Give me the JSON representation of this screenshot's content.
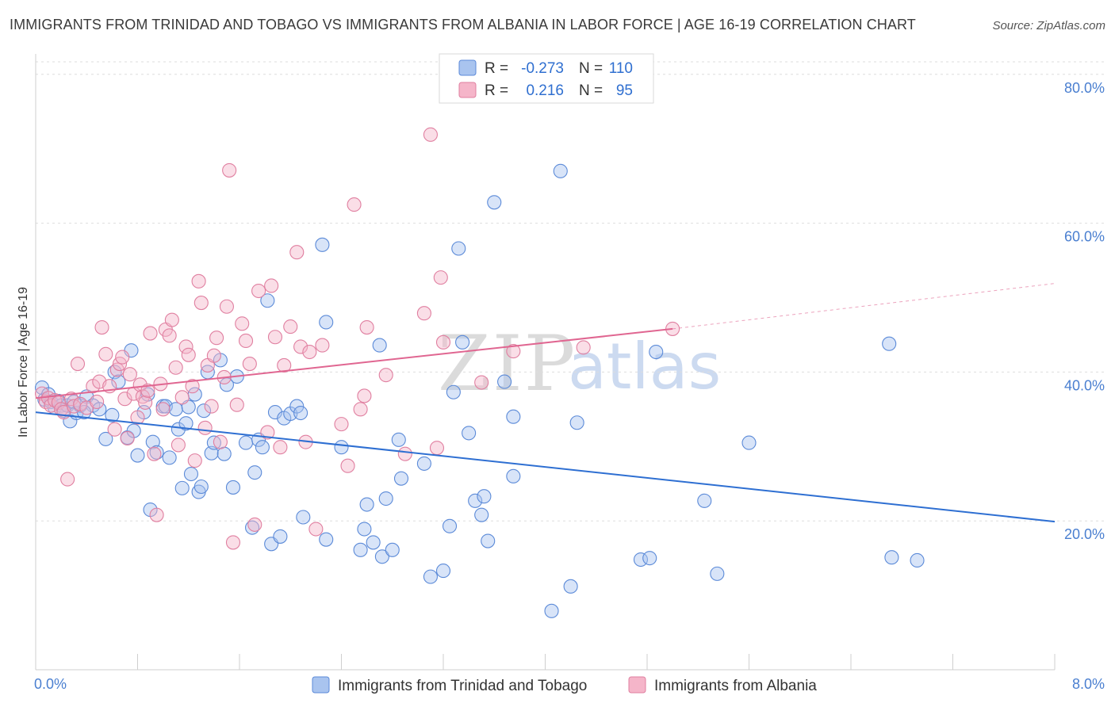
{
  "title": "IMMIGRANTS FROM TRINIDAD AND TOBAGO VS IMMIGRANTS FROM ALBANIA IN LABOR FORCE | AGE 16-19 CORRELATION CHART",
  "source": "Source: ZipAtlas.com",
  "watermark": {
    "zip": "ZIP",
    "atlas": "atlas"
  },
  "legend": {
    "r_label": "R =",
    "n_label": "N =",
    "items": [
      {
        "r": "-0.273",
        "n": "110"
      },
      {
        "r": "0.216",
        "n": "95"
      }
    ]
  },
  "colors": {
    "blue_fill": "#a9c4ef",
    "blue_stroke": "#5b8ad8",
    "blue_line": "#2e6fd2",
    "pink_fill": "#f5b5c9",
    "pink_stroke": "#e07fa0",
    "pink_line": "#e06691",
    "tick_text": "#4a7fd0",
    "grid": "#dddddd"
  },
  "chart_data": {
    "type": "scatter",
    "title": "IMMIGRANTS FROM TRINIDAD AND TOBAGO VS IMMIGRANTS FROM ALBANIA IN LABOR FORCE | AGE 16-19 CORRELATION CHART",
    "xlabel": "",
    "ylabel": "In Labor Force | Age 16-19",
    "xlim": [
      0,
      8
    ],
    "ylim": [
      0,
      82
    ],
    "x_tick_labels": [
      "0.0%",
      "8.0%"
    ],
    "y_ticks": [
      20,
      40,
      60,
      80
    ],
    "y_tick_labels": [
      "20.0%",
      "40.0%",
      "60.0%",
      "80.0%"
    ],
    "grid": true,
    "legend_position": "top-center",
    "series": [
      {
        "name": "Immigrants from Trinidad and Tobago",
        "color": "#5b8ad8",
        "r": -0.273,
        "n": 110,
        "trend": {
          "x": [
            0,
            8
          ],
          "y": [
            34.6,
            19.9
          ]
        },
        "points": [
          [
            0.05,
            37.9
          ],
          [
            0.07,
            36.3
          ],
          [
            0.1,
            37.0
          ],
          [
            0.12,
            36.0
          ],
          [
            0.15,
            35.2
          ],
          [
            0.18,
            36.1
          ],
          [
            0.2,
            35.5
          ],
          [
            0.22,
            34.8
          ],
          [
            0.25,
            35.5
          ],
          [
            0.27,
            33.4
          ],
          [
            0.3,
            36.0
          ],
          [
            0.32,
            34.5
          ],
          [
            0.35,
            35.5
          ],
          [
            0.4,
            36.7
          ],
          [
            0.45,
            35.5
          ],
          [
            0.5,
            35.0
          ],
          [
            0.55,
            31.0
          ],
          [
            0.6,
            34.2
          ],
          [
            0.62,
            40.0
          ],
          [
            0.65,
            38.7
          ],
          [
            0.72,
            31.2
          ],
          [
            0.75,
            42.9
          ],
          [
            0.77,
            32.1
          ],
          [
            0.8,
            28.8
          ],
          [
            0.85,
            34.6
          ],
          [
            0.88,
            37.0
          ],
          [
            0.9,
            21.5
          ],
          [
            0.92,
            30.6
          ],
          [
            0.95,
            29.2
          ],
          [
            1.0,
            35.4
          ],
          [
            1.02,
            35.4
          ],
          [
            1.05,
            28.5
          ],
          [
            1.1,
            35.0
          ],
          [
            1.12,
            32.3
          ],
          [
            1.15,
            24.4
          ],
          [
            1.18,
            33.1
          ],
          [
            1.2,
            35.3
          ],
          [
            1.22,
            26.3
          ],
          [
            1.25,
            37.0
          ],
          [
            1.28,
            23.9
          ],
          [
            1.3,
            24.6
          ],
          [
            1.32,
            34.8
          ],
          [
            1.35,
            40.0
          ],
          [
            1.38,
            29.1
          ],
          [
            1.4,
            30.5
          ],
          [
            1.45,
            41.6
          ],
          [
            1.48,
            29.0
          ],
          [
            1.5,
            38.3
          ],
          [
            1.55,
            24.5
          ],
          [
            1.58,
            39.4
          ],
          [
            1.65,
            30.5
          ],
          [
            1.7,
            19.1
          ],
          [
            1.72,
            26.5
          ],
          [
            1.75,
            30.9
          ],
          [
            1.78,
            29.9
          ],
          [
            1.82,
            49.6
          ],
          [
            1.85,
            16.9
          ],
          [
            1.88,
            34.6
          ],
          [
            1.92,
            17.9
          ],
          [
            1.95,
            33.8
          ],
          [
            2.0,
            34.4
          ],
          [
            2.05,
            35.4
          ],
          [
            2.08,
            34.5
          ],
          [
            2.1,
            20.5
          ],
          [
            2.25,
            57.1
          ],
          [
            2.28,
            46.7
          ],
          [
            2.28,
            17.5
          ],
          [
            2.4,
            29.9
          ],
          [
            2.55,
            16.1
          ],
          [
            2.58,
            18.9
          ],
          [
            2.6,
            22.2
          ],
          [
            2.65,
            17.1
          ],
          [
            2.7,
            43.6
          ],
          [
            2.72,
            15.2
          ],
          [
            2.75,
            23.0
          ],
          [
            2.8,
            16.1
          ],
          [
            2.85,
            30.9
          ],
          [
            2.87,
            25.7
          ],
          [
            3.05,
            27.7
          ],
          [
            3.1,
            12.5
          ],
          [
            3.2,
            13.3
          ],
          [
            3.25,
            19.3
          ],
          [
            3.28,
            37.3
          ],
          [
            3.32,
            56.6
          ],
          [
            3.35,
            44.0
          ],
          [
            3.4,
            31.8
          ],
          [
            3.45,
            22.7
          ],
          [
            3.5,
            20.8
          ],
          [
            3.52,
            23.3
          ],
          [
            3.55,
            17.3
          ],
          [
            3.6,
            62.8
          ],
          [
            3.68,
            38.7
          ],
          [
            3.75,
            34.0
          ],
          [
            3.75,
            26.0
          ],
          [
            4.12,
            67.0
          ],
          [
            4.2,
            11.2
          ],
          [
            4.25,
            33.2
          ],
          [
            4.05,
            7.9
          ],
          [
            4.75,
            14.8
          ],
          [
            4.82,
            15.0
          ],
          [
            4.87,
            42.7
          ],
          [
            5.25,
            22.7
          ],
          [
            5.35,
            12.9
          ],
          [
            5.6,
            30.5
          ],
          [
            6.7,
            43.8
          ],
          [
            6.72,
            15.1
          ],
          [
            6.92,
            14.7
          ],
          [
            0.38,
            34.6
          ]
        ]
      },
      {
        "name": "Immigrants from Albania",
        "color": "#e07fa0",
        "r": 0.216,
        "n": 95,
        "trend": {
          "x": [
            0,
            5.0
          ],
          "y": [
            36.5,
            45.8
          ]
        },
        "trend_dashed": {
          "x": [
            5.0,
            8.0
          ],
          "y": [
            45.8,
            51.9
          ]
        },
        "points": [
          [
            0.05,
            37.1
          ],
          [
            0.08,
            36.0
          ],
          [
            0.1,
            36.5
          ],
          [
            0.12,
            35.5
          ],
          [
            0.15,
            36.2
          ],
          [
            0.18,
            35.9
          ],
          [
            0.2,
            35.0
          ],
          [
            0.22,
            34.6
          ],
          [
            0.25,
            25.6
          ],
          [
            0.28,
            36.4
          ],
          [
            0.3,
            35.4
          ],
          [
            0.33,
            41.1
          ],
          [
            0.35,
            35.7
          ],
          [
            0.4,
            35.2
          ],
          [
            0.45,
            38.1
          ],
          [
            0.48,
            36.0
          ],
          [
            0.5,
            38.7
          ],
          [
            0.52,
            46.0
          ],
          [
            0.55,
            42.4
          ],
          [
            0.58,
            38.1
          ],
          [
            0.62,
            32.3
          ],
          [
            0.64,
            40.3
          ],
          [
            0.66,
            41.1
          ],
          [
            0.68,
            42.0
          ],
          [
            0.7,
            36.4
          ],
          [
            0.72,
            31.1
          ],
          [
            0.74,
            39.7
          ],
          [
            0.77,
            37.1
          ],
          [
            0.8,
            33.9
          ],
          [
            0.82,
            38.3
          ],
          [
            0.84,
            36.7
          ],
          [
            0.86,
            35.9
          ],
          [
            0.88,
            37.5
          ],
          [
            0.9,
            45.2
          ],
          [
            0.93,
            29.0
          ],
          [
            0.95,
            20.8
          ],
          [
            0.98,
            38.4
          ],
          [
            1.0,
            35.0
          ],
          [
            1.02,
            45.7
          ],
          [
            1.05,
            44.9
          ],
          [
            1.07,
            47.0
          ],
          [
            1.1,
            40.6
          ],
          [
            1.12,
            30.2
          ],
          [
            1.15,
            36.6
          ],
          [
            1.18,
            43.4
          ],
          [
            1.2,
            42.3
          ],
          [
            1.23,
            38.1
          ],
          [
            1.25,
            28.1
          ],
          [
            1.28,
            52.2
          ],
          [
            1.3,
            49.3
          ],
          [
            1.33,
            32.5
          ],
          [
            1.35,
            40.9
          ],
          [
            1.38,
            35.4
          ],
          [
            1.4,
            42.2
          ],
          [
            1.42,
            44.6
          ],
          [
            1.45,
            30.6
          ],
          [
            1.48,
            39.3
          ],
          [
            1.5,
            48.8
          ],
          [
            1.52,
            67.1
          ],
          [
            1.55,
            17.1
          ],
          [
            1.58,
            35.6
          ],
          [
            1.62,
            46.5
          ],
          [
            1.65,
            44.2
          ],
          [
            1.68,
            41.1
          ],
          [
            1.72,
            19.5
          ],
          [
            1.75,
            50.9
          ],
          [
            1.82,
            31.9
          ],
          [
            1.85,
            51.6
          ],
          [
            1.88,
            44.7
          ],
          [
            1.92,
            29.9
          ],
          [
            1.95,
            40.9
          ],
          [
            2.0,
            46.1
          ],
          [
            2.05,
            56.1
          ],
          [
            2.08,
            43.4
          ],
          [
            2.12,
            30.6
          ],
          [
            2.15,
            42.7
          ],
          [
            2.2,
            18.9
          ],
          [
            2.25,
            43.6
          ],
          [
            2.4,
            33.0
          ],
          [
            2.45,
            27.4
          ],
          [
            2.5,
            62.5
          ],
          [
            2.55,
            35.0
          ],
          [
            2.58,
            36.8
          ],
          [
            2.6,
            46.0
          ],
          [
            2.75,
            39.6
          ],
          [
            2.9,
            29.0
          ],
          [
            3.05,
            47.9
          ],
          [
            3.1,
            71.9
          ],
          [
            3.15,
            29.8
          ],
          [
            3.18,
            52.7
          ],
          [
            3.2,
            44.0
          ],
          [
            3.5,
            38.6
          ],
          [
            3.75,
            42.8
          ],
          [
            4.3,
            43.3
          ],
          [
            5.0,
            45.8
          ]
        ]
      }
    ]
  },
  "bottom_legend": {
    "items": [
      "Immigrants from Trinidad and Tobago",
      "Immigrants from Albania"
    ]
  }
}
